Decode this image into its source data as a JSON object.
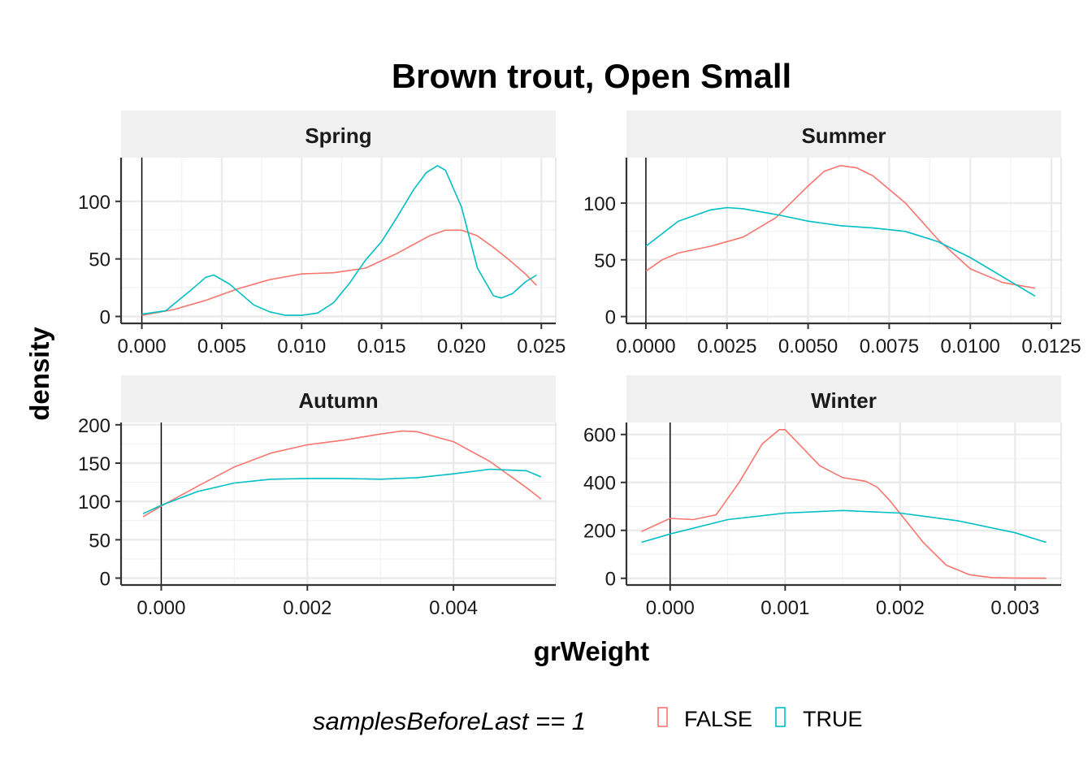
{
  "chart_data": {
    "type": "line",
    "title": "Brown trout, Open Small",
    "xlabel": "grWeight",
    "ylabel": "density",
    "grid": true,
    "legend": {
      "title": "samplesBeforeLast == 1",
      "position": "bottom",
      "entries": [
        {
          "label": "FALSE",
          "color": "#F8766D"
        },
        {
          "label": "TRUE",
          "color": "#00BFC4"
        }
      ]
    },
    "panels": [
      {
        "name": "Spring",
        "xlim": [
          -0.0013,
          0.0259
        ],
        "ylim": [
          -6,
          138
        ],
        "x_ticks": [
          0,
          0.005,
          0.01,
          0.015,
          0.02,
          0.025
        ],
        "x_tick_labels": [
          "0.000",
          "0.005",
          "0.010",
          "0.015",
          "0.020",
          "0.025"
        ],
        "y_ticks": [
          0,
          50,
          100
        ],
        "y_tick_labels": [
          "0",
          "50",
          "100"
        ],
        "vline": 0,
        "series": [
          {
            "name": "FALSE",
            "color": "#F8766D",
            "x": [
              0,
              0.002,
              0.004,
              0.006,
              0.008,
              0.01,
              0.012,
              0.014,
              0.016,
              0.018,
              0.019,
              0.02,
              0.021,
              0.022,
              0.023,
              0.024,
              0.0247
            ],
            "y": [
              1,
              6,
              14,
              24,
              32,
              37,
              38,
              42,
              55,
              70,
              75,
              75,
              70,
              60,
              49,
              37,
              27
            ]
          },
          {
            "name": "TRUE",
            "color": "#00BFC4",
            "x": [
              0,
              0.0015,
              0.003,
              0.004,
              0.0045,
              0.0055,
              0.007,
              0.008,
              0.009,
              0.01,
              0.011,
              0.012,
              0.013,
              0.014,
              0.015,
              0.016,
              0.017,
              0.0178,
              0.0185,
              0.019,
              0.02,
              0.021,
              0.022,
              0.0225,
              0.0232,
              0.024,
              0.0247
            ],
            "y": [
              2,
              5,
              22,
              34,
              36,
              28,
              10,
              4,
              1,
              1,
              3,
              12,
              29,
              49,
              65,
              87,
              110,
              125,
              131,
              127,
              95,
              42,
              18,
              16,
              20,
              30,
              36
            ]
          }
        ]
      },
      {
        "name": "Summer",
        "xlim": [
          -0.0006,
          0.0128
        ],
        "ylim": [
          -6,
          140
        ],
        "x_ticks": [
          0,
          0.0025,
          0.005,
          0.0075,
          0.01,
          0.0125
        ],
        "x_tick_labels": [
          "0.0000",
          "0.0025",
          "0.0050",
          "0.0075",
          "0.0100",
          "0.0125"
        ],
        "y_ticks": [
          0,
          50,
          100
        ],
        "y_tick_labels": [
          "0",
          "50",
          "100"
        ],
        "vline": 0,
        "series": [
          {
            "name": "FALSE",
            "color": "#F8766D",
            "x": [
              0,
              0.0005,
              0.001,
              0.002,
              0.003,
              0.004,
              0.005,
              0.0055,
              0.006,
              0.0065,
              0.007,
              0.008,
              0.009,
              0.01,
              0.011,
              0.012
            ],
            "y": [
              40,
              50,
              56,
              62,
              70,
              87,
              115,
              128,
              133,
              131,
              124,
              100,
              68,
              42,
              30,
              25
            ]
          },
          {
            "name": "TRUE",
            "color": "#00BFC4",
            "x": [
              0,
              0.001,
              0.002,
              0.0025,
              0.003,
              0.004,
              0.005,
              0.006,
              0.007,
              0.008,
              0.009,
              0.01,
              0.011,
              0.012
            ],
            "y": [
              62,
              84,
              94,
              96,
              95,
              90,
              84,
              80,
              78,
              75,
              66,
              52,
              35,
              18
            ]
          }
        ]
      },
      {
        "name": "Autumn",
        "xlim": [
          -0.00055,
          0.0054
        ],
        "ylim": [
          -9,
          203
        ],
        "x_ticks": [
          0,
          0.002,
          0.004
        ],
        "x_tick_labels": [
          "0.000",
          "0.002",
          "0.004"
        ],
        "y_ticks": [
          0,
          50,
          100,
          150,
          200
        ],
        "y_tick_labels": [
          "0",
          "50",
          "100",
          "150",
          "200"
        ],
        "vline": 0,
        "series": [
          {
            "name": "FALSE",
            "color": "#F8766D",
            "x": [
              -0.00025,
              0,
              0.0005,
              0.001,
              0.0015,
              0.002,
              0.0025,
              0.003,
              0.0033,
              0.0035,
              0.004,
              0.0045,
              0.005,
              0.0052
            ],
            "y": [
              80,
              94,
              120,
              145,
              163,
              174,
              180,
              188,
              192,
              191,
              178,
              152,
              118,
              103
            ]
          },
          {
            "name": "TRUE",
            "color": "#00BFC4",
            "x": [
              -0.00025,
              0,
              0.0005,
              0.001,
              0.0015,
              0.002,
              0.0025,
              0.003,
              0.0035,
              0.004,
              0.0045,
              0.005,
              0.0052
            ],
            "y": [
              84,
              95,
              113,
              124,
              129,
              130,
              130,
              129,
              131,
              136,
              142,
              140,
              132
            ]
          }
        ]
      },
      {
        "name": "Winter",
        "xlim": [
          -0.00038,
          0.0034
        ],
        "ylim": [
          -28,
          650
        ],
        "x_ticks": [
          0,
          0.001,
          0.002,
          0.003
        ],
        "x_tick_labels": [
          "0.000",
          "0.001",
          "0.002",
          "0.003"
        ],
        "y_ticks": [
          0,
          200,
          400,
          600
        ],
        "y_tick_labels": [
          "0",
          "200",
          "400",
          "600"
        ],
        "vline": 0,
        "series": [
          {
            "name": "FALSE",
            "color": "#F8766D",
            "x": [
              -0.00025,
              0,
              0.0002,
              0.0004,
              0.0006,
              0.0008,
              0.00095,
              0.001,
              0.0011,
              0.0013,
              0.0015,
              0.0017,
              0.0018,
              0.0019,
              0.002,
              0.0022,
              0.0024,
              0.0026,
              0.0028,
              0.003,
              0.00327
            ],
            "y": [
              195,
              250,
              245,
              265,
              400,
              560,
              620,
              620,
              570,
              470,
              420,
              405,
              380,
              330,
              270,
              150,
              55,
              15,
              3,
              1,
              0
            ]
          },
          {
            "name": "TRUE",
            "color": "#00BFC4",
            "x": [
              -0.00025,
              0,
              0.0005,
              0.001,
              0.0015,
              0.002,
              0.0025,
              0.003,
              0.00327
            ],
            "y": [
              150,
              185,
              245,
              272,
              283,
              272,
              240,
              190,
              150
            ]
          }
        ]
      }
    ]
  }
}
